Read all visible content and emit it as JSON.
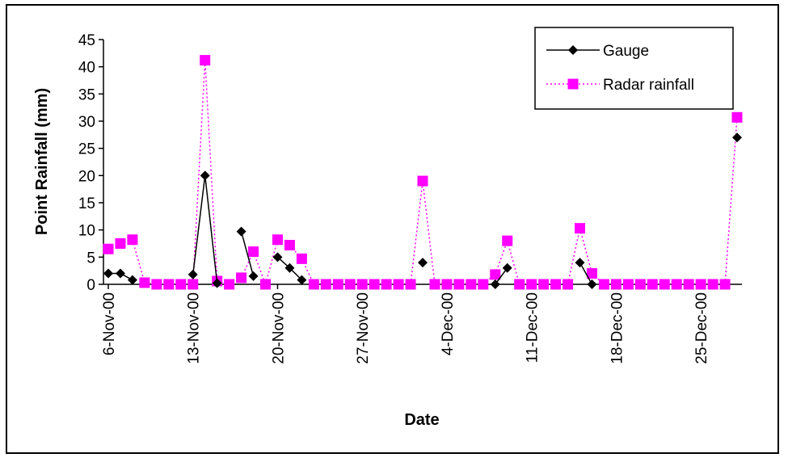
{
  "chart_data": {
    "type": "line",
    "title": "",
    "xlabel": "Date",
    "ylabel": "Point Rainfall (mm)",
    "ylim": [
      0,
      45
    ],
    "yticks": [
      0,
      5,
      10,
      15,
      20,
      25,
      30,
      35,
      40,
      45
    ],
    "xlim": [
      "2000-11-06",
      "2000-12-28"
    ],
    "xtick_labels": [
      "6-Nov-00",
      "13-Nov-00",
      "20-Nov-00",
      "27-Nov-00",
      "4-Dec-00",
      "11-Dec-00",
      "18-Dec-00",
      "25-Dec-00"
    ],
    "xtick_dates": [
      "2000-11-06",
      "2000-11-13",
      "2000-11-20",
      "2000-11-27",
      "2000-12-04",
      "2000-12-11",
      "2000-12-18",
      "2000-12-25"
    ],
    "grid": false,
    "legend_position": "top-right",
    "series": [
      {
        "name": "Gauge",
        "color": "#000000",
        "line_style": "solid",
        "marker": "diamond",
        "points": [
          [
            "2000-11-06",
            2
          ],
          [
            "2000-11-07",
            2
          ],
          [
            "2000-11-08",
            0.8
          ],
          [
            "2000-11-13",
            1.8
          ],
          [
            "2000-11-14",
            20
          ],
          [
            "2000-11-15",
            0.2
          ],
          [
            "2000-11-17",
            9.7
          ],
          [
            "2000-11-18",
            1.5
          ],
          [
            "2000-11-20",
            5
          ],
          [
            "2000-11-21",
            3
          ],
          [
            "2000-11-22",
            0.8
          ],
          [
            "2000-12-02",
            4
          ],
          [
            "2000-12-08",
            0
          ],
          [
            "2000-12-09",
            3
          ],
          [
            "2000-12-15",
            4
          ],
          [
            "2000-12-16",
            0
          ],
          [
            "2000-12-28",
            27
          ]
        ]
      },
      {
        "name": "Radar rainfall",
        "color": "#ff00ff",
        "line_style": "dotted",
        "marker": "square",
        "points": [
          [
            "2000-11-06",
            6.5
          ],
          [
            "2000-11-07",
            7.5
          ],
          [
            "2000-11-08",
            8.2
          ],
          [
            "2000-11-09",
            0.3
          ],
          [
            "2000-11-10",
            0
          ],
          [
            "2000-11-11",
            0
          ],
          [
            "2000-11-12",
            0
          ],
          [
            "2000-11-13",
            0
          ],
          [
            "2000-11-14",
            41.2
          ],
          [
            "2000-11-15",
            0.6
          ],
          [
            "2000-11-16",
            0
          ],
          [
            "2000-11-17",
            1.2
          ],
          [
            "2000-11-18",
            6
          ],
          [
            "2000-11-19",
            0
          ],
          [
            "2000-11-20",
            8.2
          ],
          [
            "2000-11-21",
            7.2
          ],
          [
            "2000-11-22",
            4.7
          ],
          [
            "2000-11-23",
            0
          ],
          [
            "2000-11-24",
            0
          ],
          [
            "2000-11-25",
            0
          ],
          [
            "2000-11-26",
            0
          ],
          [
            "2000-11-27",
            0
          ],
          [
            "2000-11-28",
            0
          ],
          [
            "2000-11-29",
            0
          ],
          [
            "2000-11-30",
            0
          ],
          [
            "2000-12-01",
            0
          ],
          [
            "2000-12-02",
            19
          ],
          [
            "2000-12-03",
            0
          ],
          [
            "2000-12-04",
            0
          ],
          [
            "2000-12-05",
            0
          ],
          [
            "2000-12-06",
            0
          ],
          [
            "2000-12-07",
            0
          ],
          [
            "2000-12-08",
            1.8
          ],
          [
            "2000-12-09",
            8
          ],
          [
            "2000-12-10",
            0
          ],
          [
            "2000-12-11",
            0
          ],
          [
            "2000-12-12",
            0
          ],
          [
            "2000-12-13",
            0
          ],
          [
            "2000-12-14",
            0
          ],
          [
            "2000-12-15",
            10.3
          ],
          [
            "2000-12-16",
            2
          ],
          [
            "2000-12-17",
            0
          ],
          [
            "2000-12-18",
            0
          ],
          [
            "2000-12-19",
            0
          ],
          [
            "2000-12-20",
            0
          ],
          [
            "2000-12-21",
            0
          ],
          [
            "2000-12-22",
            0
          ],
          [
            "2000-12-23",
            0
          ],
          [
            "2000-12-24",
            0
          ],
          [
            "2000-12-25",
            0
          ],
          [
            "2000-12-26",
            0
          ],
          [
            "2000-12-27",
            0
          ],
          [
            "2000-12-28",
            30.7
          ]
        ]
      }
    ]
  }
}
